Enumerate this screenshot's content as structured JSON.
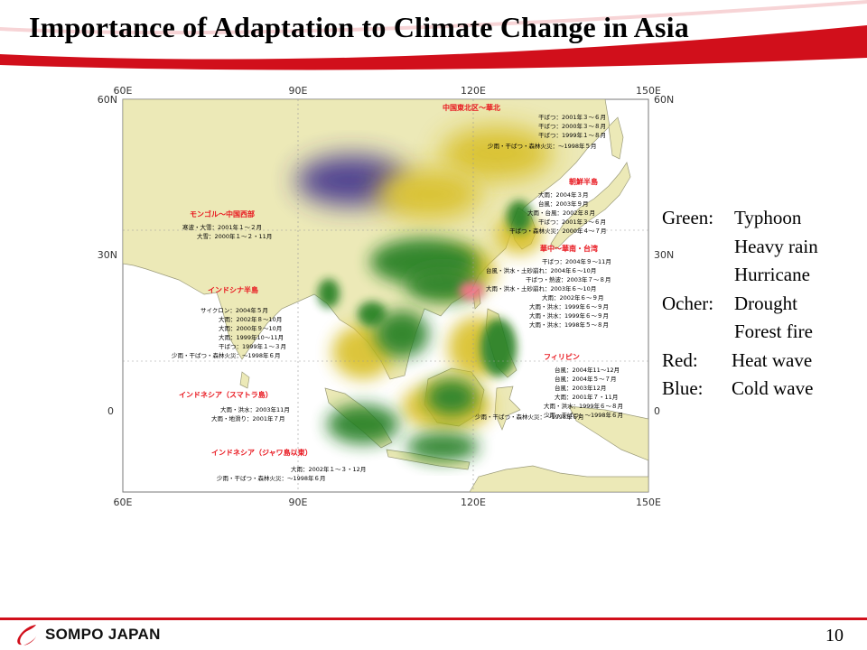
{
  "slide": {
    "title": "Importance of Adaptation to Climate Change in Asia",
    "page_number": "10",
    "brand_colors": {
      "red": "#d10f1b"
    }
  },
  "footer": {
    "logo_text": "SOMPO JAPAN"
  },
  "map": {
    "lon_labels": [
      "60E",
      "90E",
      "120E",
      "150E"
    ],
    "lat_labels": [
      "60N",
      "30N",
      "0"
    ],
    "colors": {
      "land": "#ece9b7",
      "sea": "#ffffff",
      "green": "#1e7a1e",
      "ocher": "#d8be22",
      "red": "#f06880",
      "blue": "#3c2e8c",
      "region_label": "#e8141c"
    },
    "regions": [
      {
        "name": "中国東北区～華北",
        "events": [
          "干ばつ：2001年３～６月",
          "干ばつ：2000年３～８月",
          "干ばつ：1999年１～８月",
          "少雨・干ばつ・森林火災：～1998年５月"
        ]
      },
      {
        "name": "朝鮮半島",
        "events": [
          "大雨：2004年３月",
          "台風：2003年９月",
          "大雨・台風：2002年８月",
          "干ばつ：2001年３～６月",
          "干ばつ・森林火災：2000年４～７月"
        ]
      },
      {
        "name": "モンゴル～中国西部",
        "events": [
          "寒波・大雪：2001年１～２月",
          "大雪：2000年１～２・11月"
        ]
      },
      {
        "name": "華中～華南・台湾",
        "events": [
          "干ばつ：2004年９～11月",
          "台風・洪水・土砂崩れ：2004年６～10月",
          "干ばつ・熱波：2003年７～８月",
          "大雨・洪水・土砂崩れ：2003年６～10月",
          "大雨：2002年６～９月",
          "大雨・洪水：1999年６～９月",
          "大雨・洪水：1999年６～９月",
          "大雨・洪水：1998年５～８月"
        ]
      },
      {
        "name": "インドシナ半島",
        "events": [
          "サイクロン：2004年５月",
          "大雨：2002年８～10月",
          "大雨：2000年９～10月",
          "大雨：1999年10～11月",
          "干ばつ：1999年１～３月",
          "少雨・干ばつ・森林火災：～1998年６月"
        ]
      },
      {
        "name": "フィリピン",
        "events": [
          "台風：2004年11～12月",
          "台風：2004年５～７月",
          "台風：2003年12月",
          "大雨：2001年７・11月",
          "大雨・洪水：1999年６～８月",
          "少雨・干ばつ：～1998年６月"
        ]
      },
      {
        "name": "インドネシア（スマトラ島）",
        "events": [
          "大雨・洪水：2003年11月",
          "大雨・地滑り：2001年７月"
        ]
      },
      {
        "name": "少雨・干ばつ・森林火災：～1998年６月",
        "events": []
      },
      {
        "name": "インドネシア（ジャワ島以東）",
        "events": [
          "大雨：2002年１～３・12月",
          "少雨・干ばつ・森林火災：～1998年６月"
        ]
      }
    ]
  },
  "legend": {
    "green_label": "Green:",
    "green_items": [
      "Typhoon",
      "Heavy rain",
      "Hurricane"
    ],
    "ocher_label": "Ocher:",
    "ocher_items": [
      "Drought",
      "Forest fire"
    ],
    "red_label": "Red:",
    "red_items": [
      "Heat wave"
    ],
    "blue_label": "Blue:",
    "blue_items": [
      "Cold wave"
    ]
  }
}
